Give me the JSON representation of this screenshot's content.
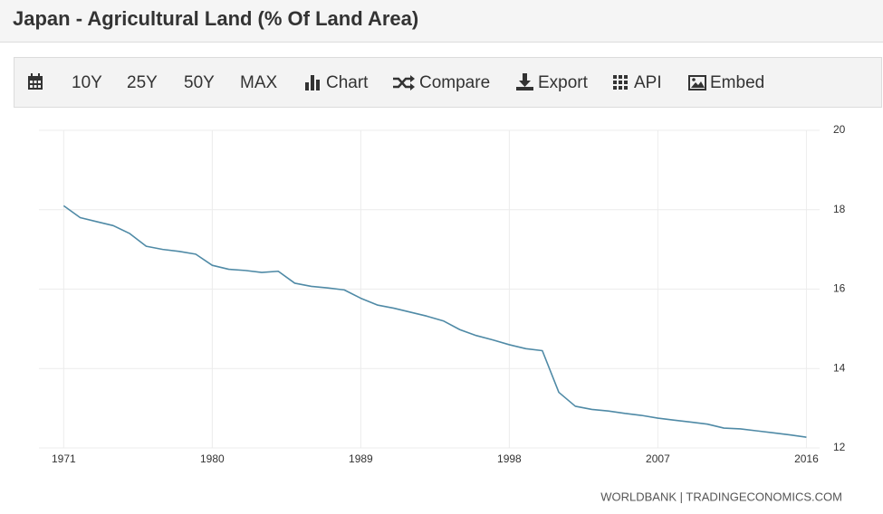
{
  "header": {
    "title": "Japan - Agricultural Land (% Of Land Area)"
  },
  "toolbar": {
    "items": [
      "10Y",
      "25Y",
      "50Y",
      "MAX",
      "Chart",
      "Compare",
      "Export",
      "API",
      "Embed"
    ]
  },
  "chart_data": {
    "type": "line",
    "x": [
      1971,
      1972,
      1973,
      1974,
      1975,
      1976,
      1977,
      1978,
      1979,
      1980,
      1981,
      1982,
      1983,
      1984,
      1985,
      1986,
      1987,
      1988,
      1989,
      1990,
      1991,
      1992,
      1993,
      1994,
      1995,
      1996,
      1997,
      1998,
      1999,
      2000,
      2001,
      2002,
      2003,
      2004,
      2005,
      2006,
      2007,
      2008,
      2009,
      2010,
      2011,
      2012,
      2013,
      2014,
      2015,
      2016
    ],
    "series": [
      {
        "name": "Japan - Agricultural Land (% Of Land Area)",
        "color": "#4f8aa6",
        "values": [
          18.1,
          17.8,
          17.7,
          17.6,
          17.4,
          17.08,
          17.0,
          16.95,
          16.88,
          16.6,
          16.5,
          16.47,
          16.42,
          16.45,
          16.15,
          16.07,
          16.03,
          15.98,
          15.77,
          15.6,
          15.52,
          15.42,
          15.32,
          15.2,
          14.98,
          14.83,
          14.72,
          14.6,
          14.5,
          14.45,
          13.4,
          13.05,
          12.97,
          12.93,
          12.87,
          12.82,
          12.75,
          12.7,
          12.65,
          12.6,
          12.5,
          12.48,
          12.43,
          12.38,
          12.33,
          12.27
        ]
      }
    ],
    "xlim": [
      1969.5,
      2016.8
    ],
    "xticks": [
      1971,
      1980,
      1989,
      1998,
      2007,
      2016
    ],
    "ylim": [
      12,
      20
    ],
    "yticks": [
      12,
      14,
      16,
      18,
      20
    ],
    "grid": true,
    "source": "WORLDBANK | TRADINGECONOMICS.COM"
  }
}
